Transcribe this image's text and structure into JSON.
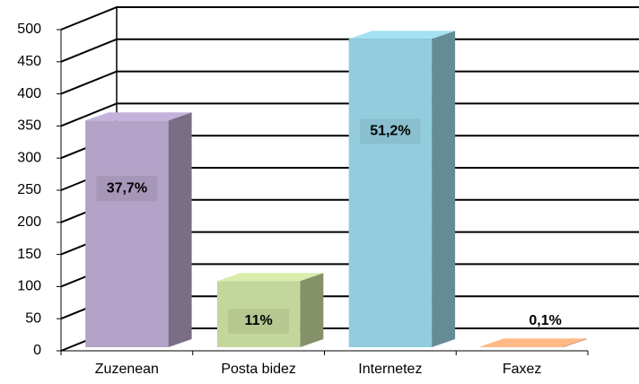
{
  "chart_data": {
    "type": "bar3d",
    "categories": [
      "Zuzenean",
      "Posta bidez",
      "Internetez",
      "Faxez"
    ],
    "values": [
      353,
      103,
      480,
      1
    ],
    "value_labels": [
      "37,7%",
      "11%",
      "51,2%",
      "0,1%"
    ],
    "colors": [
      "#b3a2c7",
      "#c4d79b",
      "#93cddd",
      "#f4a878"
    ],
    "ylim": [
      0,
      500
    ],
    "yticks": [
      0,
      50,
      100,
      150,
      200,
      250,
      300,
      350,
      400,
      450,
      500
    ],
    "grid": true
  }
}
